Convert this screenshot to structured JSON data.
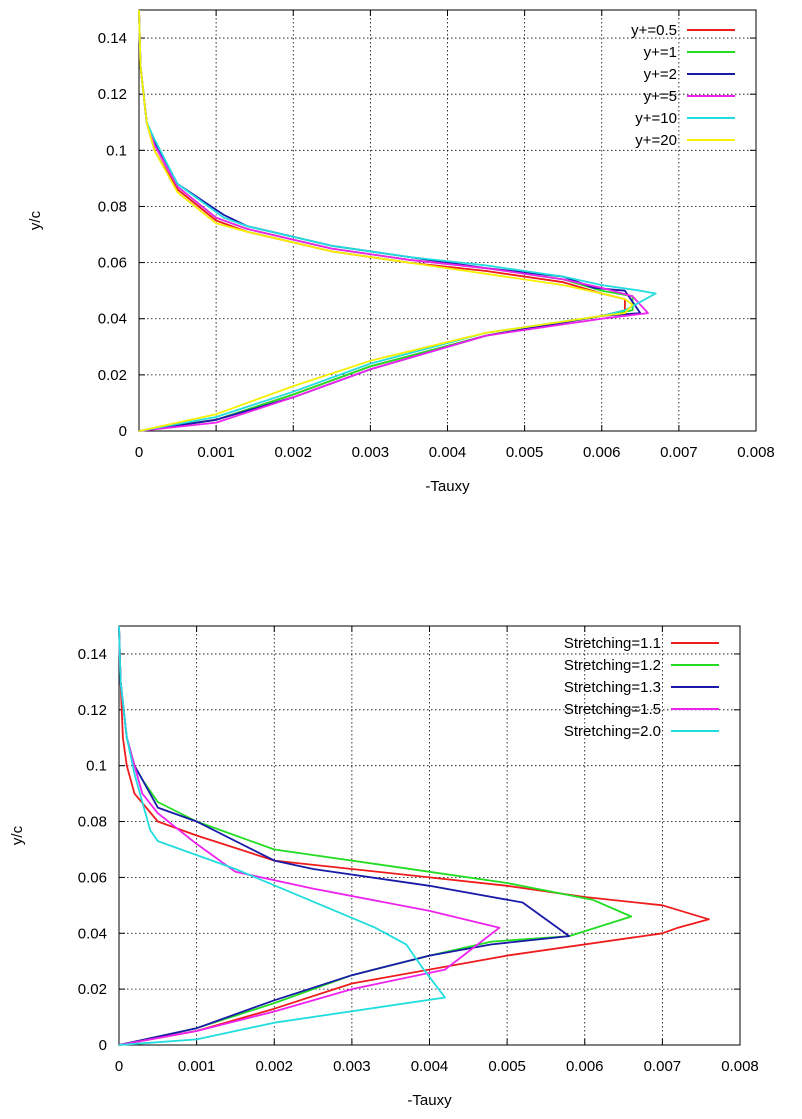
{
  "chart_data": [
    {
      "type": "line",
      "xlabel": "-Tauxy",
      "ylabel": "y/c",
      "xlim": [
        0,
        0.008
      ],
      "ylim": [
        0,
        0.15
      ],
      "xticks": [
        "0",
        "0.001",
        "0.002",
        "0.003",
        "0.004",
        "0.005",
        "0.006",
        "0.007",
        "0.008"
      ],
      "yticks": [
        "0",
        "0.02",
        "0.04",
        "0.06",
        "0.08",
        "0.1",
        "0.12",
        "0.14"
      ],
      "grid": true,
      "legend_position": "top-right",
      "series": [
        {
          "name": "y+=0.5",
          "color": "#ee1c1c",
          "points": [
            [
              0,
              0
            ],
            [
              0.001,
              0.004
            ],
            [
              0.002,
              0.013
            ],
            [
              0.003,
              0.023
            ],
            [
              0.0045,
              0.034
            ],
            [
              0.006,
              0.041
            ],
            [
              0.0063,
              0.043
            ],
            [
              0.0063,
              0.047
            ],
            [
              0.006,
              0.049
            ],
            [
              0.0055,
              0.053
            ],
            [
              0.0045,
              0.057
            ],
            [
              0.0035,
              0.06
            ],
            [
              0.0025,
              0.064
            ],
            [
              0.0014,
              0.071
            ],
            [
              0.001,
              0.075
            ],
            [
              0.0005,
              0.086
            ],
            [
              0.0002,
              0.1
            ],
            [
              0.0001,
              0.11
            ],
            [
              2e-05,
              0.13
            ],
            [
              0,
              0.15
            ]
          ]
        },
        {
          "name": "y+=1",
          "color": "#22dd22",
          "points": [
            [
              0,
              0
            ],
            [
              0.001,
              0.004
            ],
            [
              0.002,
              0.013
            ],
            [
              0.003,
              0.023
            ],
            [
              0.0045,
              0.034
            ],
            [
              0.006,
              0.041
            ],
            [
              0.0064,
              0.043
            ],
            [
              0.0064,
              0.048
            ],
            [
              0.006,
              0.05
            ],
            [
              0.0055,
              0.054
            ],
            [
              0.0045,
              0.058
            ],
            [
              0.0035,
              0.061
            ],
            [
              0.0025,
              0.065
            ],
            [
              0.0014,
              0.072
            ],
            [
              0.001,
              0.076
            ],
            [
              0.0005,
              0.087
            ],
            [
              0.0002,
              0.102
            ],
            [
              0.0001,
              0.11
            ],
            [
              2e-05,
              0.13
            ],
            [
              0,
              0.15
            ]
          ]
        },
        {
          "name": "y+=2",
          "color": "#1a1aa8",
          "points": [
            [
              0,
              0
            ],
            [
              0.001,
              0.004
            ],
            [
              0.002,
              0.012
            ],
            [
              0.003,
              0.022
            ],
            [
              0.0045,
              0.034
            ],
            [
              0.006,
              0.041
            ],
            [
              0.0065,
              0.042
            ],
            [
              0.0063,
              0.05
            ],
            [
              0.0059,
              0.051
            ],
            [
              0.0055,
              0.055
            ],
            [
              0.0045,
              0.058
            ],
            [
              0.0035,
              0.062
            ],
            [
              0.0025,
              0.066
            ],
            [
              0.0014,
              0.073
            ],
            [
              0.0011,
              0.077
            ],
            [
              0.0005,
              0.088
            ],
            [
              0.0002,
              0.103
            ],
            [
              0.0001,
              0.11
            ],
            [
              2e-05,
              0.13
            ],
            [
              0,
              0.15
            ]
          ]
        },
        {
          "name": "y+=5",
          "color": "#ee22ee",
          "points": [
            [
              0,
              0
            ],
            [
              0.001,
              0.003
            ],
            [
              0.002,
              0.012
            ],
            [
              0.003,
              0.022
            ],
            [
              0.0045,
              0.034
            ],
            [
              0.006,
              0.04
            ],
            [
              0.0066,
              0.042
            ],
            [
              0.0065,
              0.045
            ],
            [
              0.0064,
              0.048
            ],
            [
              0.006,
              0.051
            ],
            [
              0.0055,
              0.054
            ],
            [
              0.0045,
              0.058
            ],
            [
              0.0035,
              0.061
            ],
            [
              0.0025,
              0.065
            ],
            [
              0.0014,
              0.072
            ],
            [
              0.001,
              0.076
            ],
            [
              0.0005,
              0.087
            ],
            [
              0.0002,
              0.102
            ],
            [
              0.0001,
              0.11
            ],
            [
              2e-05,
              0.13
            ],
            [
              0,
              0.15
            ]
          ]
        },
        {
          "name": "y+=10",
          "color": "#22dddd",
          "points": [
            [
              0,
              0
            ],
            [
              0.001,
              0.005
            ],
            [
              0.002,
              0.014
            ],
            [
              0.003,
              0.024
            ],
            [
              0.0045,
              0.035
            ],
            [
              0.006,
              0.041
            ],
            [
              0.0063,
              0.043
            ],
            [
              0.0067,
              0.049
            ],
            [
              0.0065,
              0.05
            ],
            [
              0.006,
              0.052
            ],
            [
              0.0055,
              0.055
            ],
            [
              0.0045,
              0.059
            ],
            [
              0.0035,
              0.062
            ],
            [
              0.0025,
              0.066
            ],
            [
              0.0014,
              0.073
            ],
            [
              0.0011,
              0.076
            ],
            [
              0.0005,
              0.088
            ],
            [
              0.0002,
              0.104
            ],
            [
              0.0001,
              0.11
            ],
            [
              2e-05,
              0.13
            ],
            [
              0,
              0.15
            ]
          ]
        },
        {
          "name": "y+=20",
          "color": "#f5f000",
          "points": [
            [
              0,
              0
            ],
            [
              0.001,
              0.006
            ],
            [
              0.002,
              0.016
            ],
            [
              0.003,
              0.025
            ],
            [
              0.0045,
              0.035
            ],
            [
              0.006,
              0.041
            ],
            [
              0.0063,
              0.042
            ],
            [
              0.0064,
              0.045
            ],
            [
              0.0063,
              0.047
            ],
            [
              0.006,
              0.049
            ],
            [
              0.0055,
              0.052
            ],
            [
              0.0045,
              0.056
            ],
            [
              0.0035,
              0.06
            ],
            [
              0.0025,
              0.064
            ],
            [
              0.0014,
              0.071
            ],
            [
              0.001,
              0.074
            ],
            [
              0.0005,
              0.085
            ],
            [
              0.0002,
              0.1
            ],
            [
              0.0001,
              0.11
            ],
            [
              2e-05,
              0.13
            ],
            [
              0,
              0.15
            ]
          ]
        }
      ]
    },
    {
      "type": "line",
      "xlabel": "-Tauxy",
      "ylabel": "y/c",
      "xlim": [
        0,
        0.008
      ],
      "ylim": [
        0,
        0.15
      ],
      "xticks": [
        "0",
        "0.001",
        "0.002",
        "0.003",
        "0.004",
        "0.005",
        "0.006",
        "0.007",
        "0.008"
      ],
      "yticks": [
        "0",
        "0.02",
        "0.04",
        "0.06",
        "0.08",
        "0.1",
        "0.12",
        "0.14"
      ],
      "grid": true,
      "legend_position": "top-right",
      "series": [
        {
          "name": "Stretching=1.1",
          "color": "#ee1c1c",
          "points": [
            [
              0,
              0
            ],
            [
              0.001,
              0.005
            ],
            [
              0.002,
              0.013
            ],
            [
              0.003,
              0.022
            ],
            [
              0.005,
              0.032
            ],
            [
              0.007,
              0.04
            ],
            [
              0.0072,
              0.042
            ],
            [
              0.0076,
              0.045
            ],
            [
              0.007,
              0.05
            ],
            [
              0.006,
              0.053
            ],
            [
              0.005,
              0.057
            ],
            [
              0.004,
              0.06
            ],
            [
              0.002,
              0.066
            ],
            [
              0.001,
              0.075
            ],
            [
              0.0005,
              0.08
            ],
            [
              0.0002,
              0.09
            ],
            [
              0.0001,
              0.1
            ],
            [
              5e-05,
              0.11
            ],
            [
              2e-05,
              0.13
            ],
            [
              0,
              0.15
            ]
          ]
        },
        {
          "name": "Stretching=1.2",
          "color": "#22dd22",
          "points": [
            [
              0,
              0
            ],
            [
              0.001,
              0.006
            ],
            [
              0.002,
              0.015
            ],
            [
              0.003,
              0.025
            ],
            [
              0.004,
              0.032
            ],
            [
              0.0048,
              0.037
            ],
            [
              0.0058,
              0.039
            ],
            [
              0.0066,
              0.046
            ],
            [
              0.0061,
              0.052
            ],
            [
              0.005,
              0.058
            ],
            [
              0.004,
              0.062
            ],
            [
              0.0035,
              0.064
            ],
            [
              0.002,
              0.07
            ],
            [
              0.001,
              0.08
            ],
            [
              0.0005,
              0.087
            ],
            [
              0.0003,
              0.095
            ],
            [
              0.0002,
              0.1
            ],
            [
              0.0001,
              0.11
            ],
            [
              2e-05,
              0.13
            ],
            [
              0,
              0.15
            ]
          ]
        },
        {
          "name": "Stretching=1.3",
          "color": "#1a1aa8",
          "points": [
            [
              0,
              0
            ],
            [
              0.001,
              0.006
            ],
            [
              0.002,
              0.016
            ],
            [
              0.003,
              0.025
            ],
            [
              0.004,
              0.032
            ],
            [
              0.0048,
              0.036
            ],
            [
              0.0058,
              0.039
            ],
            [
              0.0052,
              0.051
            ],
            [
              0.004,
              0.057
            ],
            [
              0.0025,
              0.063
            ],
            [
              0.002,
              0.066
            ],
            [
              0.001,
              0.08
            ],
            [
              0.0005,
              0.085
            ],
            [
              0.0003,
              0.095
            ],
            [
              0.0002,
              0.1
            ],
            [
              0.0001,
              0.11
            ],
            [
              2e-05,
              0.13
            ],
            [
              0,
              0.15
            ]
          ]
        },
        {
          "name": "Stretching=1.5",
          "color": "#ee22ee",
          "points": [
            [
              0,
              0
            ],
            [
              0.001,
              0.005
            ],
            [
              0.002,
              0.012
            ],
            [
              0.003,
              0.02
            ],
            [
              0.0042,
              0.027
            ],
            [
              0.0049,
              0.042
            ],
            [
              0.004,
              0.048
            ],
            [
              0.0025,
              0.056
            ],
            [
              0.0015,
              0.062
            ],
            [
              0.001,
              0.072
            ],
            [
              0.0005,
              0.083
            ],
            [
              0.0003,
              0.09
            ],
            [
              0.0002,
              0.1
            ],
            [
              0.0001,
              0.11
            ],
            [
              2e-05,
              0.13
            ],
            [
              0,
              0.15
            ]
          ]
        },
        {
          "name": "Stretching=2.0",
          "color": "#22dddd",
          "points": [
            [
              0,
              0
            ],
            [
              0.001,
              0.002
            ],
            [
              0.002,
              0.008
            ],
            [
              0.0042,
              0.017
            ],
            [
              0.0039,
              0.028
            ],
            [
              0.0037,
              0.036
            ],
            [
              0.0033,
              0.042
            ],
            [
              0.0015,
              0.063
            ],
            [
              0.0005,
              0.073
            ],
            [
              0.0004,
              0.077
            ],
            [
              0.0003,
              0.087
            ],
            [
              0.0002,
              0.097
            ],
            [
              0.0001,
              0.11
            ],
            [
              2e-05,
              0.13
            ],
            [
              0,
              0.15
            ]
          ]
        }
      ]
    }
  ]
}
